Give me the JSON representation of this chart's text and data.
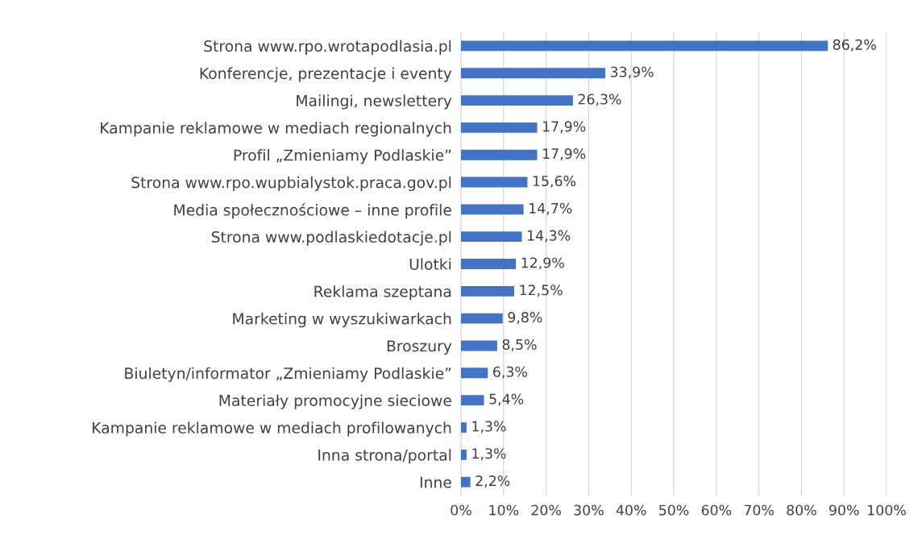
{
  "chart_data": {
    "type": "bar",
    "orientation": "horizontal",
    "categories": [
      "Strona www.rpo.wrotapodlasia.pl",
      "Konferencje, prezentacje i eventy",
      "Mailingi, newslettery",
      "Kampanie reklamowe w mediach regionalnych",
      "Profil „Zmieniamy Podlaskie”",
      "Strona www.rpo.wupbialystok.praca.gov.pl",
      "Media społecznościowe – inne profile",
      "Strona www.podlaskiedotacje.pl",
      "Ulotki",
      "Reklama szeptana",
      "Marketing w wyszukiwarkach",
      "Broszury",
      "Biuletyn/informator „Zmieniamy Podlaskie”",
      "Materiały promocyjne sieciowe",
      "Kampanie reklamowe w mediach profilowanych",
      "Inna strona/portal",
      "Inne"
    ],
    "values": [
      86.2,
      33.9,
      26.3,
      17.9,
      17.9,
      15.6,
      14.7,
      14.3,
      12.9,
      12.5,
      9.8,
      8.5,
      6.3,
      5.4,
      1.3,
      1.3,
      2.2
    ],
    "value_labels": [
      "86,2%",
      "33,9%",
      "26,3%",
      "17,9%",
      "17,9%",
      "15,6%",
      "14,7%",
      "14,3%",
      "12,9%",
      "12,5%",
      "9,8%",
      "8,5%",
      "6,3%",
      "5,4%",
      "1,3%",
      "1,3%",
      "2,2%"
    ],
    "color": "#4472c4",
    "xlim": [
      0,
      100
    ],
    "xticks": [
      {
        "value": 0,
        "label": "0%"
      },
      {
        "value": 10,
        "label": "10%"
      },
      {
        "value": 20,
        "label": "20%"
      },
      {
        "value": 30,
        "label": "30%"
      },
      {
        "value": 40,
        "label": "40%"
      },
      {
        "value": 50,
        "label": "50%"
      },
      {
        "value": 60,
        "label": "60%"
      },
      {
        "value": 70,
        "label": "70%"
      },
      {
        "value": 80,
        "label": "80%"
      },
      {
        "value": 90,
        "label": "90%"
      },
      {
        "value": 100,
        "label": "100%"
      }
    ],
    "grid": "x",
    "legend": false
  }
}
